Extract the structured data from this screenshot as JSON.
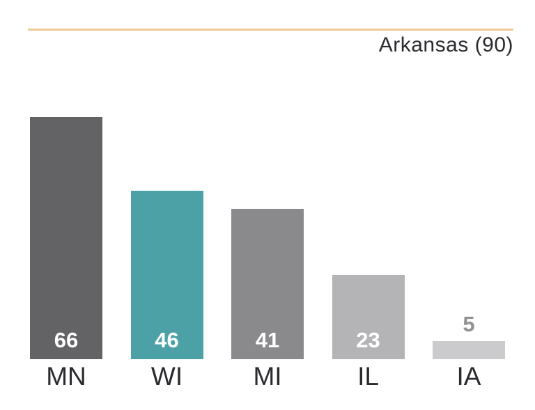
{
  "header": {
    "title": "Arkansas (90)"
  },
  "colors": {
    "rule": "#ECC896",
    "axis_text": "#2A2B2E",
    "value_inside": "#FFFFFF",
    "value_above": "#919194"
  },
  "chart_data": {
    "type": "bar",
    "title": "Arkansas (90)",
    "reference_line": {
      "label": "Arkansas",
      "value": 90
    },
    "categories": [
      "MN",
      "WI",
      "MI",
      "IL",
      "IA"
    ],
    "values": [
      66,
      46,
      41,
      23,
      5
    ],
    "value_labels": [
      "66",
      "46",
      "41",
      "23",
      "5"
    ],
    "value_label_position": [
      "inside",
      "inside",
      "inside",
      "inside",
      "above"
    ],
    "bar_colors": [
      "#636366",
      "#4BA1A5",
      "#8A8A8D",
      "#B4B4B6",
      "#CBCBCE"
    ],
    "xlabel": "",
    "ylabel": "",
    "ylim": [
      0,
      90
    ],
    "grid": false,
    "legend": false
  }
}
